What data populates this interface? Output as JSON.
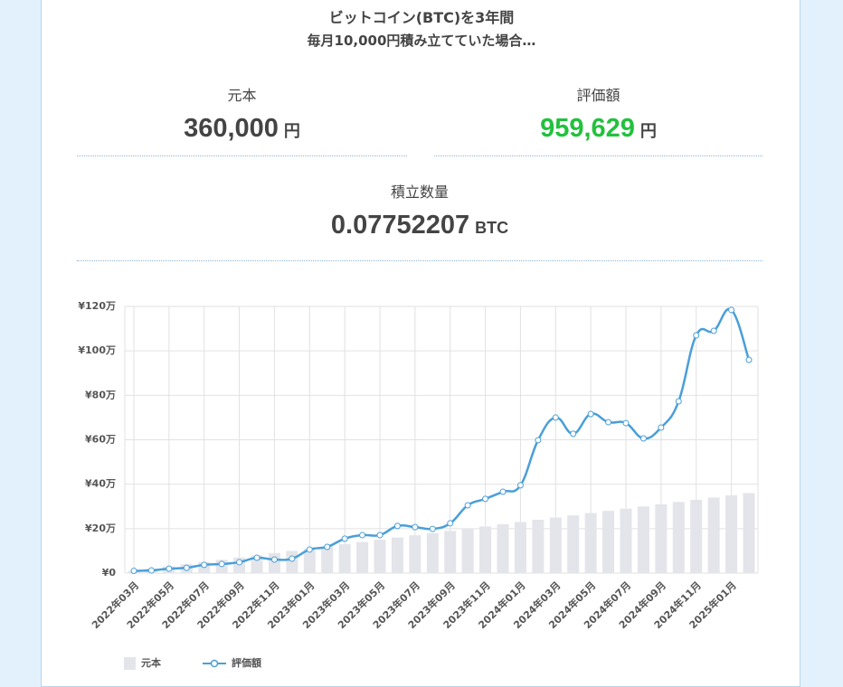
{
  "header": {
    "title": "ビットコイン(BTC)を3年間",
    "subtitle": "毎月10,000円積み立てていた場合…"
  },
  "stats": [
    {
      "label": "元本",
      "value": "360,000",
      "unit": "円"
    },
    {
      "label": "評価額",
      "value": "959,629",
      "unit": "円"
    },
    {
      "label": "積立数量",
      "value": "0.07752207",
      "unit": "BTC"
    }
  ],
  "chart_data": {
    "type": "bar",
    "categories": [
      "2022年03月",
      null,
      "2022年05月",
      null,
      "2022年07月",
      null,
      "2022年09月",
      null,
      "2022年11月",
      null,
      "2023年01月",
      null,
      "2023年03月",
      null,
      "2023年05月",
      null,
      "2023年07月",
      null,
      "2023年09月",
      null,
      "2023年11月",
      null,
      "2024年01月",
      null,
      "2024年03月",
      null,
      "2024年05月",
      null,
      "2024年07月",
      null,
      "2024年09月",
      null,
      "2024年11月",
      null,
      "2025年01月",
      null
    ],
    "series": [
      {
        "name": "元本",
        "type": "bar",
        "color": "#e4e5ea",
        "values": [
          10000,
          20000,
          30000,
          40000,
          50000,
          60000,
          70000,
          80000,
          90000,
          100000,
          110000,
          120000,
          130000,
          140000,
          150000,
          160000,
          170000,
          180000,
          190000,
          200000,
          210000,
          220000,
          230000,
          240000,
          250000,
          260000,
          270000,
          280000,
          290000,
          300000,
          310000,
          320000,
          330000,
          340000,
          350000,
          360000
        ]
      },
      {
        "name": "評価額",
        "type": "line",
        "color": "#4a9fd8",
        "values": [
          10000,
          12000,
          20000,
          24000,
          37000,
          41000,
          49000,
          69000,
          61000,
          65000,
          106000,
          118000,
          155000,
          171000,
          171000,
          212000,
          207000,
          199000,
          224000,
          305000,
          334000,
          366000,
          395000,
          598000,
          700000,
          627000,
          716000,
          679000,
          675000,
          606000,
          655000,
          773000,
          1070000,
          1090000,
          1184000,
          959629
        ]
      }
    ],
    "ylim": [
      0,
      1200000
    ],
    "yticks": [
      {
        "value": 0,
        "label": "¥0"
      },
      {
        "value": 200000,
        "label": "¥20万"
      },
      {
        "value": 400000,
        "label": "¥40万"
      },
      {
        "value": 600000,
        "label": "¥60万"
      },
      {
        "value": 800000,
        "label": "¥80万"
      },
      {
        "value": 1000000,
        "label": "¥100万"
      },
      {
        "value": 1200000,
        "label": "¥120万"
      }
    ],
    "grid": true
  }
}
